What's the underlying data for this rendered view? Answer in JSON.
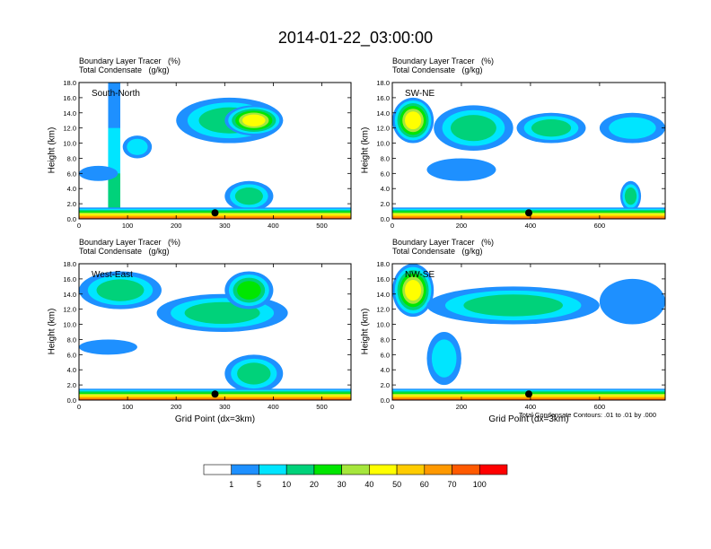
{
  "figure_title": "2014-01-22_03:00:00",
  "colors": {
    "levels": [
      "#ffffff",
      "#1e90ff",
      "#00e5ff",
      "#00d27a",
      "#00e600",
      "#a6e63c",
      "#ffff00",
      "#ffcc00",
      "#ff9900",
      "#ff5a00",
      "#ff0000"
    ]
  },
  "colorbar": {
    "labels": [
      "1",
      "5",
      "10",
      "20",
      "30",
      "40",
      "50",
      "60",
      "70",
      "100"
    ]
  },
  "contour_note": "Total Condensate Contours: .01 to .01 by .000",
  "chart_data": [
    {
      "type": "heatmap",
      "header_line1": "Boundary Layer Tracer   (%)",
      "header_line2": "Total Condensate   (g/kg)",
      "panel_label": "South-North",
      "ylabel": "Height (km)",
      "xlabel": "",
      "xlim": [
        0,
        560
      ],
      "ylim": [
        0,
        18
      ],
      "xticks": [
        "0",
        "100",
        "200",
        "300",
        "400",
        "500"
      ],
      "xtick_values": [
        0,
        100,
        200,
        300,
        400,
        500
      ],
      "yticks": [
        "0.0",
        "2.0",
        "4.0",
        "6.0",
        "8.0",
        "10.0",
        "12.0",
        "14.0",
        "16.0",
        "18.0"
      ],
      "marker_x": 280,
      "blobs": [
        {
          "x": [
            60,
            85
          ],
          "y": [
            0,
            18
          ],
          "level": 3
        },
        {
          "x": [
            200,
            420
          ],
          "y": [
            10,
            16
          ],
          "level": 3
        },
        {
          "x": [
            300,
            420
          ],
          "y": [
            11,
            15
          ],
          "level": 6
        },
        {
          "x": [
            90,
            150
          ],
          "y": [
            8,
            11
          ],
          "level": 2
        },
        {
          "x": [
            0,
            80
          ],
          "y": [
            5,
            7
          ],
          "level": 1
        },
        {
          "x": [
            300,
            400
          ],
          "y": [
            1,
            5
          ],
          "level": 3
        },
        {
          "x": [
            0,
            560
          ],
          "y": [
            0,
            1.5
          ],
          "level": 9
        }
      ]
    },
    {
      "type": "heatmap",
      "header_line1": "Boundary Layer Tracer   (%)",
      "header_line2": "Total Condensate   (g/kg)",
      "panel_label": "SW-NE",
      "ylabel": "Height (km)",
      "xlabel": "",
      "xlim": [
        0,
        790
      ],
      "ylim": [
        0,
        18
      ],
      "xticks": [
        "0",
        "200",
        "400",
        "600"
      ],
      "xtick_values": [
        0,
        200,
        400,
        600
      ],
      "yticks": [
        "0.0",
        "2.0",
        "4.0",
        "6.0",
        "8.0",
        "10.0",
        "12.0",
        "14.0",
        "16.0",
        "18.0"
      ],
      "marker_x": 395,
      "blobs": [
        {
          "x": [
            0,
            120
          ],
          "y": [
            10,
            16
          ],
          "level": 6
        },
        {
          "x": [
            120,
            350
          ],
          "y": [
            9,
            15
          ],
          "level": 3
        },
        {
          "x": [
            360,
            560
          ],
          "y": [
            10,
            14
          ],
          "level": 3
        },
        {
          "x": [
            600,
            790
          ],
          "y": [
            10,
            14
          ],
          "level": 2
        },
        {
          "x": [
            100,
            300
          ],
          "y": [
            5,
            8
          ],
          "level": 1
        },
        {
          "x": [
            660,
            720
          ],
          "y": [
            1,
            5
          ],
          "level": 3
        },
        {
          "x": [
            0,
            790
          ],
          "y": [
            0,
            1.5
          ],
          "level": 9
        }
      ]
    },
    {
      "type": "heatmap",
      "header_line1": "Boundary Layer Tracer   (%)",
      "header_line2": "Total Condensate   (g/kg)",
      "panel_label": "West-East",
      "ylabel": "Height (km)",
      "xlabel": "Grid Point (dx=3km)",
      "xlim": [
        0,
        560
      ],
      "ylim": [
        0,
        18
      ],
      "xticks": [
        "0",
        "100",
        "200",
        "300",
        "400",
        "500"
      ],
      "xtick_values": [
        0,
        100,
        200,
        300,
        400,
        500
      ],
      "yticks": [
        "0.0",
        "2.0",
        "4.0",
        "6.0",
        "8.0",
        "10.0",
        "12.0",
        "14.0",
        "16.0",
        "18.0"
      ],
      "marker_x": 280,
      "blobs": [
        {
          "x": [
            0,
            170
          ],
          "y": [
            12,
            17
          ],
          "level": 3
        },
        {
          "x": [
            160,
            430
          ],
          "y": [
            9,
            14
          ],
          "level": 3
        },
        {
          "x": [
            300,
            400
          ],
          "y": [
            12,
            17
          ],
          "level": 4
        },
        {
          "x": [
            0,
            120
          ],
          "y": [
            6,
            8
          ],
          "level": 1
        },
        {
          "x": [
            300,
            420
          ],
          "y": [
            1,
            6
          ],
          "level": 3
        },
        {
          "x": [
            0,
            560
          ],
          "y": [
            0,
            1.5
          ],
          "level": 9
        }
      ]
    },
    {
      "type": "heatmap",
      "header_line1": "Boundary Layer Tracer   (%)",
      "header_line2": "Total Condensate   (g/kg)",
      "panel_label": "NW-SE",
      "ylabel": "Height (km)",
      "xlabel": "Grid Point (dx=3km)",
      "xlim": [
        0,
        790
      ],
      "ylim": [
        0,
        18
      ],
      "xticks": [
        "0",
        "200",
        "400",
        "600"
      ],
      "xtick_values": [
        0,
        200,
        400,
        600
      ],
      "yticks": [
        "0.0",
        "2.0",
        "4.0",
        "6.0",
        "8.0",
        "10.0",
        "12.0",
        "14.0",
        "16.0",
        "18.0"
      ],
      "marker_x": 395,
      "blobs": [
        {
          "x": [
            0,
            120
          ],
          "y": [
            11,
            18
          ],
          "level": 6
        },
        {
          "x": [
            100,
            600
          ],
          "y": [
            10,
            15
          ],
          "level": 3
        },
        {
          "x": [
            600,
            790
          ],
          "y": [
            10,
            16
          ],
          "level": 1
        },
        {
          "x": [
            100,
            200
          ],
          "y": [
            2,
            9
          ],
          "level": 2
        },
        {
          "x": [
            0,
            790
          ],
          "y": [
            0,
            1.5
          ],
          "level": 9
        }
      ]
    }
  ]
}
